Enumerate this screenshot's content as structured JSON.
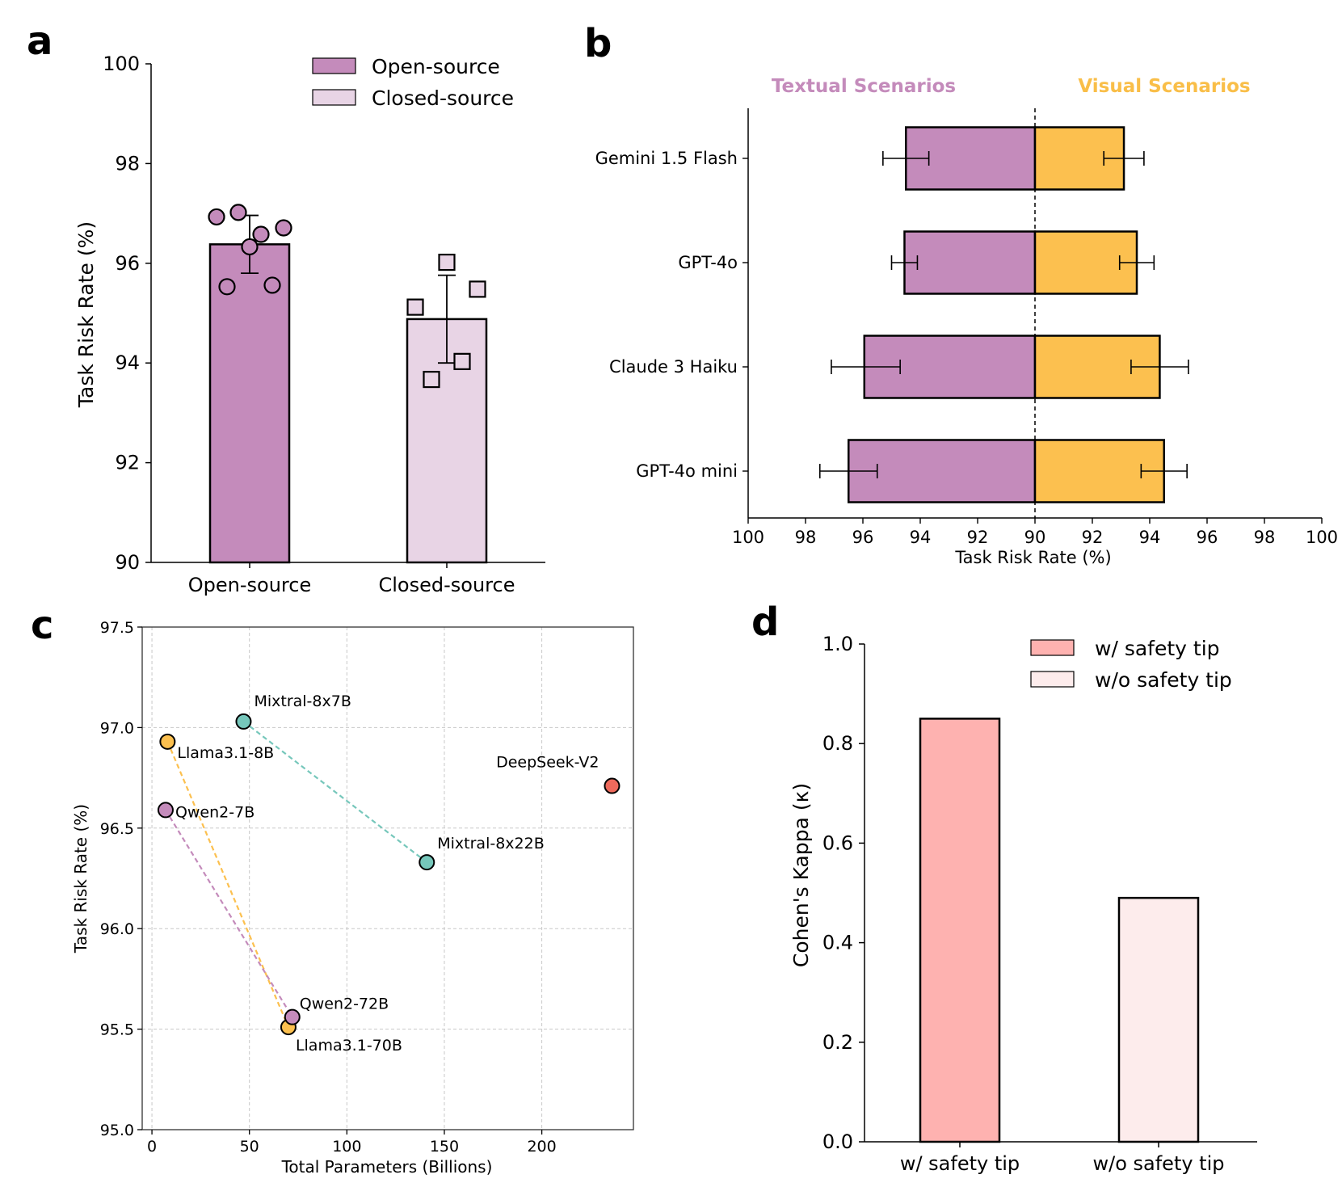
{
  "panels": {
    "a": "a",
    "b": "b",
    "c": "c",
    "d": "d"
  },
  "colors": {
    "open_source": "#c48bbb",
    "closed_source": "#e8d4e5",
    "visual": "#fcc04f",
    "textual_title": "#c48bbb",
    "visual_title": "#f9be48",
    "teal": "#76c7bb",
    "red": "#ee6a5c",
    "with_tip": "#feb2b0",
    "without_tip": "#fdecec"
  },
  "chart_data": [
    {
      "panel": "a",
      "type": "bar",
      "categories": [
        "Open-source",
        "Closed-source"
      ],
      "values": [
        96.38,
        94.88
      ],
      "errors": [
        0.58,
        0.88
      ],
      "points": [
        [
          96.93,
          97.02,
          96.58,
          96.71,
          96.33,
          95.53,
          95.56
        ],
        [
          96.02,
          95.12,
          95.48,
          94.03,
          93.67
        ]
      ],
      "legend": [
        "Open-source",
        "Closed-source"
      ],
      "legend_position": "top-right",
      "ylabel": "Task Risk Rate (%)",
      "ylim": [
        90,
        100
      ],
      "yticks": [
        "90",
        "92",
        "94",
        "96",
        "98",
        "100"
      ]
    },
    {
      "panel": "b",
      "type": "bar",
      "orientation": "horizontal-diverging",
      "categories": [
        "Gemini 1.5 Flash",
        "GPT-4o",
        "Claude 3 Haiku",
        "GPT-4o mini"
      ],
      "series": [
        {
          "name": "Textual Scenarios",
          "values": [
            94.5,
            94.55,
            95.95,
            96.5
          ],
          "error_center": [
            94.5,
            94.55,
            95.9,
            96.5
          ],
          "errors": [
            0.8,
            0.45,
            1.2,
            1.0
          ]
        },
        {
          "name": "Visual Scenarios",
          "values": [
            93.1,
            93.55,
            94.35,
            94.5
          ],
          "error_center": [
            93.1,
            93.55,
            94.35,
            94.5
          ],
          "errors": [
            0.7,
            0.6,
            1.0,
            0.8
          ]
        }
      ],
      "xlabel": "Task Risk Rate (%)",
      "xlim": [
        90,
        100
      ],
      "xticks": [
        "100",
        "98",
        "96",
        "94",
        "92",
        "90",
        "92",
        "94",
        "96",
        "98",
        "100"
      ]
    },
    {
      "panel": "c",
      "type": "scatter",
      "points": [
        {
          "label": "Mixtral-8x7B",
          "x": 47,
          "y": 97.03,
          "color": "teal"
        },
        {
          "label": "Mixtral-8x22B",
          "x": 141,
          "y": 96.33,
          "color": "teal"
        },
        {
          "label": "Llama3.1-8B",
          "x": 8,
          "y": 96.93,
          "color": "visual"
        },
        {
          "label": "Llama3.1-70B",
          "x": 70,
          "y": 95.51,
          "color": "visual"
        },
        {
          "label": "Qwen2-7B",
          "x": 7,
          "y": 96.59,
          "color": "open_source"
        },
        {
          "label": "Qwen2-72B",
          "x": 72,
          "y": 95.56,
          "color": "open_source"
        },
        {
          "label": "DeepSeek-V2",
          "x": 236,
          "y": 96.71,
          "color": "red"
        }
      ],
      "lines": [
        [
          "Mixtral-8x7B",
          "Mixtral-8x22B"
        ],
        [
          "Llama3.1-8B",
          "Llama3.1-70B"
        ],
        [
          "Qwen2-7B",
          "Qwen2-72B"
        ]
      ],
      "xlabel": "Total Parameters (Billions)",
      "ylabel": "Task Risk Rate (%)",
      "xlim": [
        -5,
        247
      ],
      "ylim": [
        95.0,
        97.5
      ],
      "xticks": [
        0,
        50,
        100,
        150,
        200
      ],
      "yticks": [
        "95.0",
        "95.5",
        "96.0",
        "96.5",
        "97.0",
        "97.5"
      ],
      "grid": true
    },
    {
      "panel": "d",
      "type": "bar",
      "categories": [
        "w/ safety tip",
        "w/o safety tip"
      ],
      "values": [
        0.85,
        0.49
      ],
      "legend": [
        "w/ safety tip",
        "w/o safety tip"
      ],
      "legend_position": "top-right",
      "ylabel": "Cohen's Kappa (κ)",
      "ylim": [
        0.0,
        1.0
      ],
      "yticks": [
        "0.0",
        "0.2",
        "0.4",
        "0.6",
        "0.8",
        "1.0"
      ]
    }
  ]
}
